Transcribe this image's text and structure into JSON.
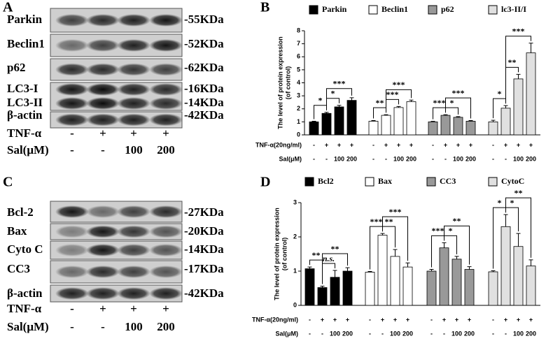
{
  "blots": [
    {
      "panel_label": "A",
      "rows": [
        {
          "label": "Parkin",
          "marker": "-55KDa"
        },
        {
          "label": "Beclin1",
          "marker": "-52KDa"
        },
        {
          "label": "p62",
          "marker": "-62KDa"
        },
        {
          "label": "LC3-I",
          "marker": "-16KDa"
        },
        {
          "label": "LC3-II",
          "marker": "-14KDa"
        },
        {
          "label": "β-actin",
          "marker": "-42KDa"
        }
      ],
      "tnf_label": "TNF-α",
      "tnf": [
        "-",
        "+",
        "+",
        "+"
      ],
      "sal_label": "Sal(μM)",
      "sal": [
        "-",
        "-",
        "100",
        "200"
      ]
    },
    {
      "panel_label": "C",
      "rows": [
        {
          "label": "Bcl-2",
          "marker": "-27KDa"
        },
        {
          "label": "Bax",
          "marker": "-20KDa"
        },
        {
          "label": "Cyto C",
          "marker": "-14KDa"
        },
        {
          "label": "CC3",
          "marker": "-17KDa"
        },
        {
          "label": "β-actin",
          "marker": "-42KDa"
        }
      ],
      "tnf_label": "TNF-α",
      "tnf": [
        "-",
        "+",
        "+",
        "+"
      ],
      "sal_label": "Sal(μM)",
      "sal": [
        "-",
        "-",
        "100",
        "200"
      ]
    }
  ],
  "chart_data": [
    {
      "type": "bar",
      "panel_label": "B",
      "ylabel": [
        "The level of protein expression",
        "(of control)"
      ],
      "ylim": [
        0,
        8
      ],
      "yticks": [
        0,
        1,
        2,
        3,
        4,
        5,
        6,
        7,
        8
      ],
      "conditions": {
        "tnf_label": "TNF-α(20ng/ml)",
        "tnf": [
          "-",
          "+",
          "+",
          "+"
        ],
        "sal_label": "Sal(μM)",
        "sal": [
          "-",
          "-",
          "100",
          "200"
        ]
      },
      "series": [
        {
          "name": "Parkin",
          "color": "#000000",
          "values": [
            1.0,
            1.65,
            2.15,
            2.65
          ],
          "errors": [
            0.05,
            0.08,
            0.12,
            0.2
          ],
          "significance": [
            "*",
            "*",
            "***"
          ]
        },
        {
          "name": "Beclin1",
          "color": "#ffffff",
          "values": [
            1.05,
            1.5,
            2.1,
            2.55
          ],
          "errors": [
            0.05,
            0.05,
            0.08,
            0.12
          ],
          "significance": [
            "**",
            "***",
            "***"
          ]
        },
        {
          "name": "p62",
          "color": "#999999",
          "values": [
            1.0,
            1.5,
            1.35,
            1.05
          ],
          "errors": [
            0.04,
            0.05,
            0.05,
            0.05
          ],
          "significance": [
            "***",
            "*",
            "***"
          ]
        },
        {
          "name": "lc3-II/I",
          "color": "#e0e0e0",
          "values": [
            1.0,
            2.05,
            4.3,
            6.3
          ],
          "errors": [
            0.12,
            0.2,
            0.35,
            0.75
          ],
          "significance": [
            "*",
            "**",
            "***"
          ]
        }
      ]
    },
    {
      "type": "bar",
      "panel_label": "D",
      "ylabel": [
        "The level of protein expression",
        "(of control)"
      ],
      "ylim": [
        0,
        3
      ],
      "yticks": [
        0,
        1,
        2,
        3
      ],
      "conditions": {
        "tnf_label": "TNF-α(20ng/ml)",
        "tnf": [
          "-",
          "+",
          "+",
          "+"
        ],
        "sal_label": "Sal(μM)",
        "sal": [
          "-",
          "-",
          "100",
          "200"
        ]
      },
      "series": [
        {
          "name": "Bcl2",
          "color": "#000000",
          "values": [
            1.07,
            0.52,
            0.82,
            1.0
          ],
          "errors": [
            0.05,
            0.04,
            0.2,
            0.1
          ],
          "significance": [
            "**",
            "n.s.",
            "**"
          ]
        },
        {
          "name": "Bax",
          "color": "#ffffff",
          "values": [
            0.97,
            2.05,
            1.43,
            1.12
          ],
          "errors": [
            0.02,
            0.05,
            0.2,
            0.12
          ],
          "significance": [
            "***",
            "**",
            "***"
          ]
        },
        {
          "name": "CC3",
          "color": "#999999",
          "values": [
            1.0,
            1.68,
            1.35,
            1.05
          ],
          "errors": [
            0.05,
            0.15,
            0.08,
            0.08
          ],
          "significance": [
            "***",
            "*",
            "**"
          ]
        },
        {
          "name": "CytoC",
          "color": "#e0e0e0",
          "values": [
            0.98,
            2.3,
            1.72,
            1.15
          ],
          "errors": [
            0.03,
            0.35,
            0.38,
            0.18
          ],
          "significance": [
            "*",
            "*",
            "**"
          ]
        }
      ]
    }
  ]
}
